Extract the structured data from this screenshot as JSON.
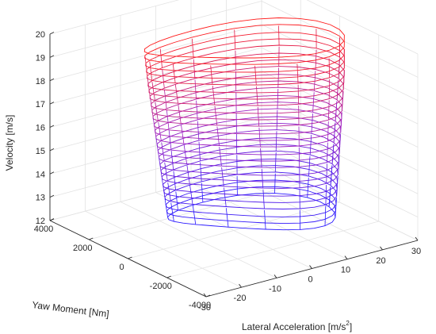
{
  "chart_data": {
    "type": "mesh3d",
    "xlabel": "Lateral Acceleration [m/s",
    "xlabel_sup": "2",
    "xlabel_tail": "]",
    "ylabel": "Yaw Moment [Nm]",
    "zlabel": "Velocity [m/s]",
    "xlim": [
      -30,
      30
    ],
    "ylim": [
      -4000,
      4000
    ],
    "zlim": [
      12,
      20
    ],
    "x_ticks": [
      "-30",
      "-20",
      "-10",
      "0",
      "10",
      "20",
      "30"
    ],
    "y_ticks": [
      "-4000",
      "-2000",
      "0",
      "2000",
      "4000"
    ],
    "z_ticks": [
      "12",
      "13",
      "14",
      "15",
      "16",
      "17",
      "18",
      "19",
      "20"
    ],
    "grid": true,
    "colormap": {
      "low": "#2b1aff",
      "mid": "#a020c0",
      "high": "#ff1a1a"
    },
    "surface": {
      "description_levels": [
        12.5,
        13.5,
        14.5,
        15.5,
        16.5,
        17.5,
        18.5,
        19.5
      ],
      "lateral_acc_range_by_velocity": [
        {
          "velocity": 12.5,
          "min": -12,
          "max": 22
        },
        {
          "velocity": 14.5,
          "min": -14,
          "max": 23
        },
        {
          "velocity": 16.5,
          "min": -16,
          "max": 24
        },
        {
          "velocity": 18.5,
          "min": -18,
          "max": 25
        },
        {
          "velocity": 19.8,
          "min": -19,
          "max": 25
        }
      ],
      "yaw_moment_range": [
        -3000,
        3000
      ]
    }
  }
}
